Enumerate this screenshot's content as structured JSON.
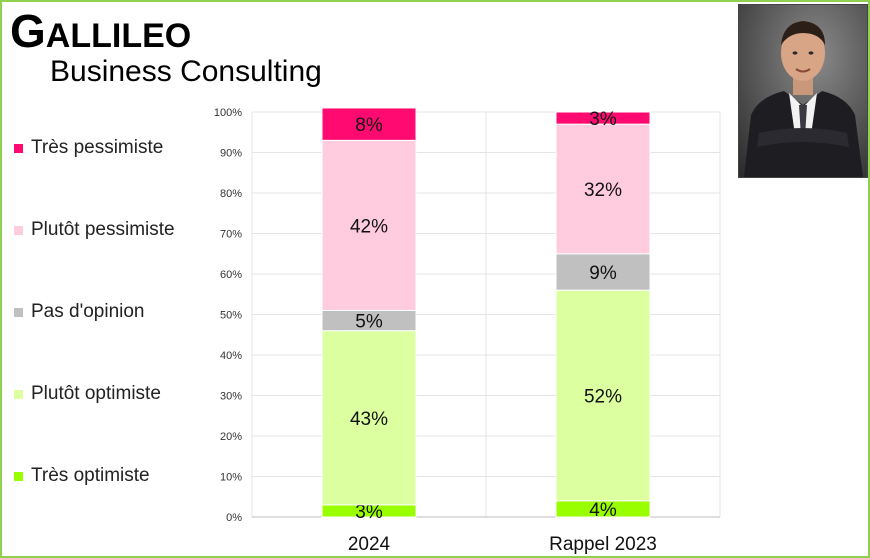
{
  "brand": {
    "title_first": "G",
    "title_rest": "ALLILEO",
    "subtitle": "Business Consulting"
  },
  "photo": {
    "icon": "person-portrait-icon"
  },
  "chart_data": {
    "type": "bar",
    "stacked": true,
    "categories": [
      "2024",
      "Rappel 2023"
    ],
    "series": [
      {
        "name": "Très optimiste",
        "color": "#99ff00",
        "values": [
          3,
          4
        ]
      },
      {
        "name": "Plutôt optimiste",
        "color": "#dcff9f",
        "values": [
          43,
          52
        ]
      },
      {
        "name": "Pas d'opinion",
        "color": "#c0c0c0",
        "values": [
          5,
          9
        ]
      },
      {
        "name": "Plutôt pessimiste",
        "color": "#ffccdf",
        "values": [
          42,
          32
        ]
      },
      {
        "name": "Très pessimiste",
        "color": "#ff0a70",
        "values": [
          8,
          3
        ]
      }
    ],
    "legend_order": [
      "Très pessimiste",
      "Plutôt pessimiste",
      "Pas d'opinion",
      "Plutôt optimiste",
      "Très optimiste"
    ],
    "y_ticks": [
      "0%",
      "10%",
      "20%",
      "30%",
      "40%",
      "50%",
      "60%",
      "70%",
      "80%",
      "90%",
      "100%"
    ],
    "ylim": [
      0,
      100
    ],
    "grid": true,
    "legend_position": "left"
  }
}
